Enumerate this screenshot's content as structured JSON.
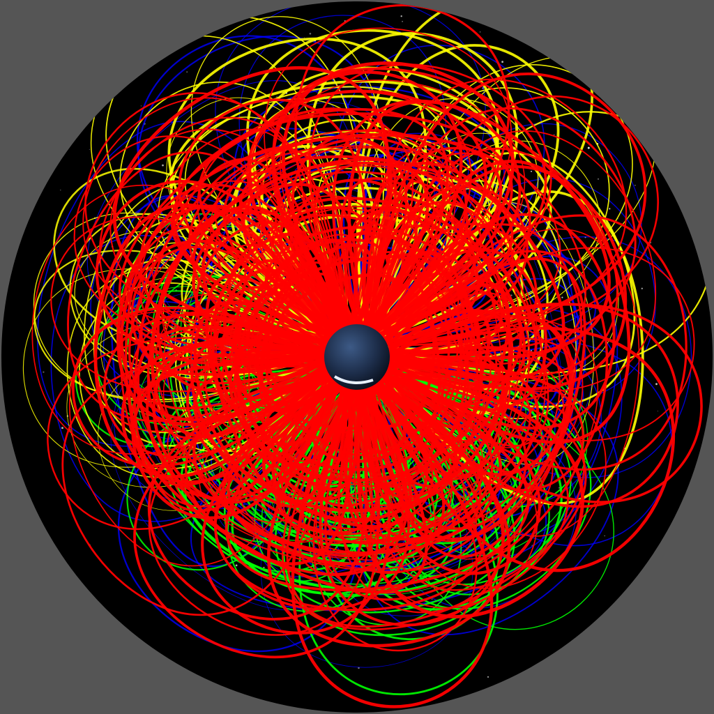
{
  "scene": {
    "background_color": "#555555",
    "dome_color": "#000000",
    "planet_color": "#1c2c48",
    "line_colors": {
      "red": "#ff0000",
      "yellow": "#ffff00",
      "green": "#00ff00",
      "blue": "#0000ff"
    }
  }
}
